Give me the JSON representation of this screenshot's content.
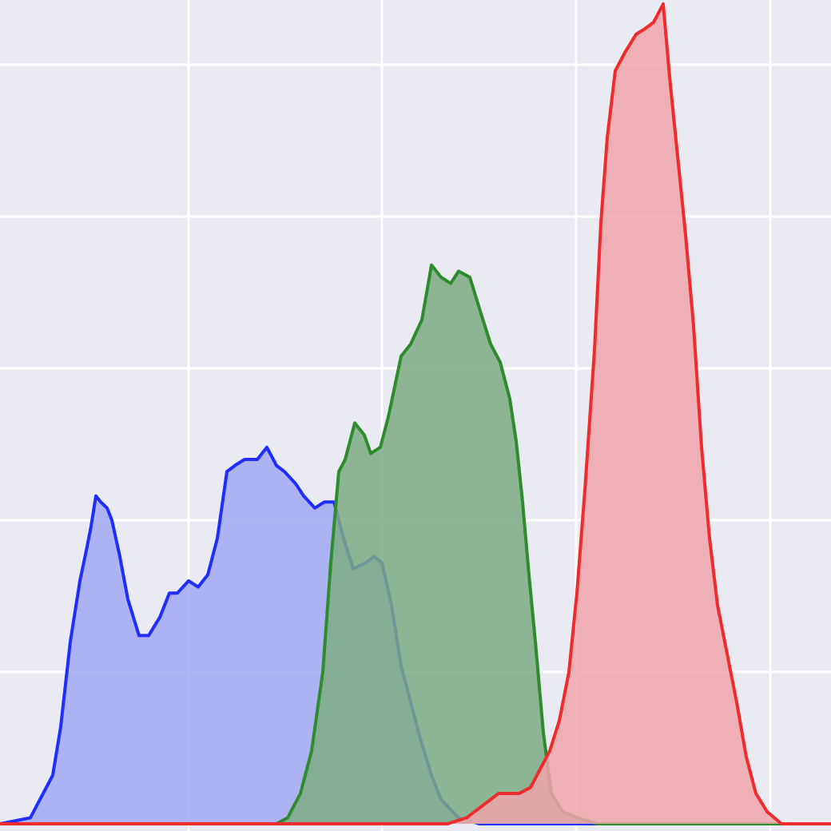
{
  "chart_data": {
    "type": "area",
    "grid": true,
    "background_color": "#eaeaf2",
    "grid_color": "#ffffff",
    "xlim": [
      0,
      1040
    ],
    "ylim": [
      0,
      1.4
    ],
    "x_gridlines": [
      236,
      478,
      721,
      964
    ],
    "y_gridlines": [
      0.25,
      0.5,
      0.75,
      1.0,
      1.25
    ],
    "series": [
      {
        "color": "#1f2dff",
        "fill": "#a2a8f2",
        "points": [
          [
            0,
            0.0
          ],
          [
            38,
            0.01
          ],
          [
            50,
            0.04
          ],
          [
            66,
            0.08
          ],
          [
            76,
            0.16
          ],
          [
            88,
            0.3
          ],
          [
            100,
            0.4
          ],
          [
            108,
            0.45
          ],
          [
            114,
            0.49
          ],
          [
            120,
            0.54
          ],
          [
            126,
            0.53
          ],
          [
            134,
            0.52
          ],
          [
            140,
            0.5
          ],
          [
            150,
            0.44
          ],
          [
            160,
            0.37
          ],
          [
            174,
            0.31
          ],
          [
            186,
            0.31
          ],
          [
            200,
            0.34
          ],
          [
            212,
            0.38
          ],
          [
            222,
            0.38
          ],
          [
            236,
            0.4
          ],
          [
            248,
            0.39
          ],
          [
            260,
            0.41
          ],
          [
            272,
            0.47
          ],
          [
            284,
            0.58
          ],
          [
            294,
            0.59
          ],
          [
            306,
            0.6
          ],
          [
            322,
            0.6
          ],
          [
            334,
            0.62
          ],
          [
            346,
            0.59
          ],
          [
            356,
            0.58
          ],
          [
            370,
            0.56
          ],
          [
            380,
            0.54
          ],
          [
            394,
            0.52
          ],
          [
            406,
            0.53
          ],
          [
            418,
            0.53
          ],
          [
            430,
            0.47
          ],
          [
            442,
            0.42
          ],
          [
            458,
            0.43
          ],
          [
            468,
            0.44
          ],
          [
            478,
            0.43
          ],
          [
            490,
            0.36
          ],
          [
            502,
            0.26
          ],
          [
            514,
            0.2
          ],
          [
            526,
            0.14
          ],
          [
            540,
            0.08
          ],
          [
            552,
            0.04
          ],
          [
            574,
            0.01
          ],
          [
            600,
            0.0
          ],
          [
            1040,
            0.0
          ]
        ]
      },
      {
        "color": "#2e8b2e",
        "fill": "#7bab84",
        "points": [
          [
            0,
            0.0
          ],
          [
            346,
            0.0
          ],
          [
            360,
            0.01
          ],
          [
            376,
            0.05
          ],
          [
            390,
            0.12
          ],
          [
            404,
            0.25
          ],
          [
            414,
            0.43
          ],
          [
            424,
            0.58
          ],
          [
            432,
            0.6
          ],
          [
            444,
            0.66
          ],
          [
            456,
            0.64
          ],
          [
            464,
            0.61
          ],
          [
            476,
            0.62
          ],
          [
            486,
            0.67
          ],
          [
            494,
            0.72
          ],
          [
            502,
            0.77
          ],
          [
            514,
            0.79
          ],
          [
            528,
            0.83
          ],
          [
            540,
            0.92
          ],
          [
            552,
            0.9
          ],
          [
            564,
            0.89
          ],
          [
            574,
            0.91
          ],
          [
            588,
            0.9
          ],
          [
            602,
            0.84
          ],
          [
            614,
            0.79
          ],
          [
            626,
            0.76
          ],
          [
            638,
            0.7
          ],
          [
            646,
            0.63
          ],
          [
            654,
            0.53
          ],
          [
            662,
            0.41
          ],
          [
            670,
            0.3
          ],
          [
            680,
            0.15
          ],
          [
            690,
            0.05
          ],
          [
            704,
            0.02
          ],
          [
            722,
            0.01
          ],
          [
            748,
            0.0
          ],
          [
            1040,
            0.0
          ]
        ]
      },
      {
        "color": "#ef2b2b",
        "fill": "#eea4ab",
        "points": [
          [
            0,
            0.0
          ],
          [
            560,
            0.0
          ],
          [
            584,
            0.01
          ],
          [
            604,
            0.03
          ],
          [
            624,
            0.05
          ],
          [
            636,
            0.05
          ],
          [
            650,
            0.05
          ],
          [
            664,
            0.06
          ],
          [
            676,
            0.09
          ],
          [
            688,
            0.12
          ],
          [
            700,
            0.17
          ],
          [
            712,
            0.25
          ],
          [
            722,
            0.38
          ],
          [
            732,
            0.55
          ],
          [
            744,
            0.78
          ],
          [
            752,
            0.99
          ],
          [
            760,
            1.13
          ],
          [
            770,
            1.24
          ],
          [
            782,
            1.27
          ],
          [
            796,
            1.3
          ],
          [
            808,
            1.31
          ],
          [
            818,
            1.32
          ],
          [
            830,
            1.35
          ],
          [
            838,
            1.23
          ],
          [
            848,
            1.1
          ],
          [
            858,
            0.97
          ],
          [
            868,
            0.82
          ],
          [
            878,
            0.62
          ],
          [
            888,
            0.47
          ],
          [
            898,
            0.36
          ],
          [
            910,
            0.28
          ],
          [
            922,
            0.2
          ],
          [
            934,
            0.11
          ],
          [
            946,
            0.05
          ],
          [
            960,
            0.02
          ],
          [
            978,
            0.0
          ],
          [
            1040,
            0.0
          ]
        ]
      }
    ]
  }
}
